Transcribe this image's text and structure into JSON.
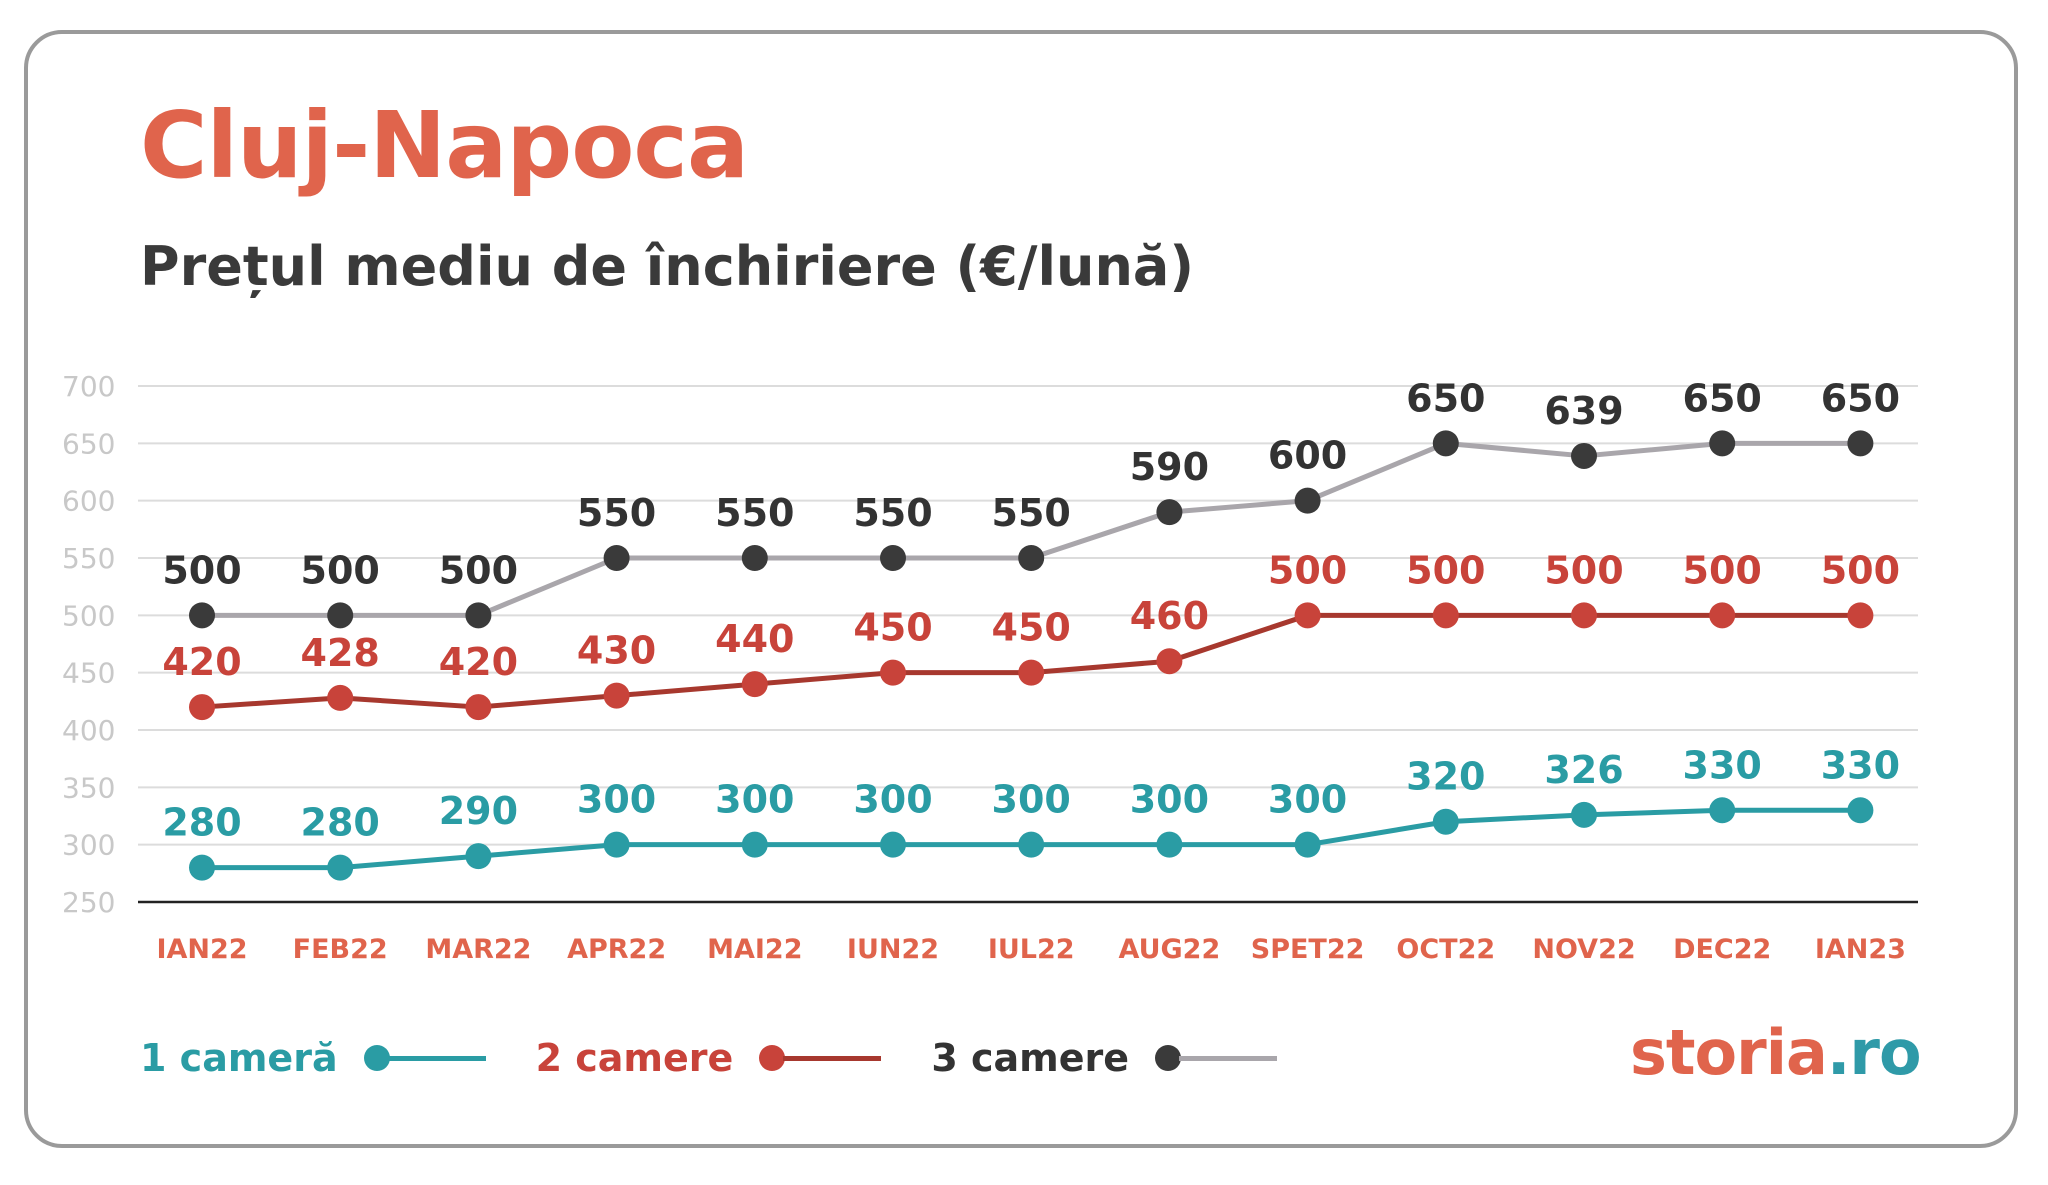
{
  "header": {
    "title": "Cluj-Napoca",
    "subtitle": "Prețul mediu de închiriere (€/lună)"
  },
  "brand": {
    "name": "storia",
    "tld": ".ro"
  },
  "colors": {
    "title": "#e0644c",
    "axis_tick": "#c8c8c8",
    "x_labels": "#e0644c",
    "grid": "#dcdcdc",
    "baseline": "#222222"
  },
  "chart_data": {
    "type": "line",
    "title": "Prețul mediu de închiriere (€/lună)",
    "xlabel": "",
    "ylabel": "",
    "ylim": [
      250,
      700
    ],
    "yticks": [
      250,
      300,
      350,
      400,
      450,
      500,
      550,
      600,
      650,
      700
    ],
    "grid": true,
    "legend": "bottom-left",
    "categories": [
      "IAN22",
      "FEB22",
      "MAR22",
      "APR22",
      "MAI22",
      "IUN22",
      "IUL22",
      "AUG22",
      "SPET22",
      "OCT22",
      "NOV22",
      "DEC22",
      "IAN23"
    ],
    "series": [
      {
        "name": "1 cameră",
        "line_color": "#2a9ca4",
        "marker_color": "#2a9ca4",
        "label_color": "#2a9ca4",
        "values": [
          280,
          280,
          290,
          300,
          300,
          300,
          300,
          300,
          300,
          320,
          326,
          330,
          330
        ]
      },
      {
        "name": "2 camere",
        "line_color": "#a7382e",
        "marker_color": "#c8433a",
        "label_color": "#c8433a",
        "values": [
          420,
          428,
          420,
          430,
          440,
          450,
          450,
          460,
          500,
          500,
          500,
          500,
          500
        ]
      },
      {
        "name": "3 camere",
        "line_color": "#a9a6ab",
        "marker_color": "#3a3a3a",
        "label_color": "#333333",
        "values": [
          500,
          500,
          500,
          550,
          550,
          550,
          550,
          590,
          600,
          650,
          639,
          650,
          650
        ]
      }
    ]
  }
}
